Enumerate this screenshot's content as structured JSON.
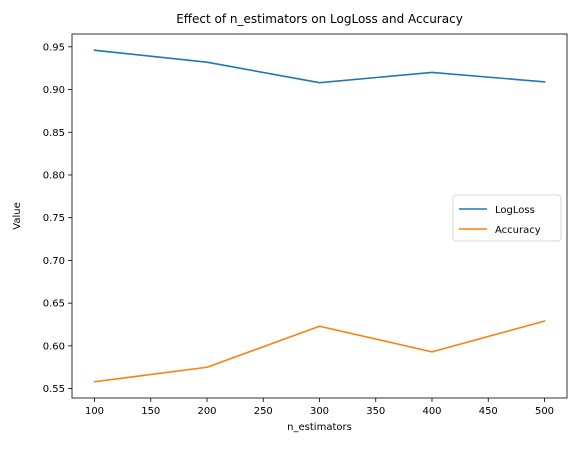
{
  "chart_data": {
    "type": "line",
    "title": "Effect of n_estimators on LogLoss and Accuracy",
    "xlabel": "n_estimators",
    "ylabel": "Value",
    "x": [
      100,
      200,
      300,
      400,
      500
    ],
    "series": [
      {
        "name": "LogLoss",
        "color": "#1f77b4",
        "values": [
          0.946,
          0.932,
          0.908,
          0.92,
          0.909
        ]
      },
      {
        "name": "Accuracy",
        "color": "#ff7f0e",
        "values": [
          0.558,
          0.575,
          0.623,
          0.593,
          0.629
        ]
      }
    ],
    "xlim": [
      80,
      520
    ],
    "ylim": [
      0.539,
      0.965
    ],
    "xticks": [
      100,
      150,
      200,
      250,
      300,
      350,
      400,
      450,
      500
    ],
    "yticks": [
      0.55,
      0.6,
      0.65,
      0.7,
      0.75,
      0.8,
      0.85,
      0.9,
      0.95
    ],
    "grid": false,
    "legend_position": "center-right"
  }
}
